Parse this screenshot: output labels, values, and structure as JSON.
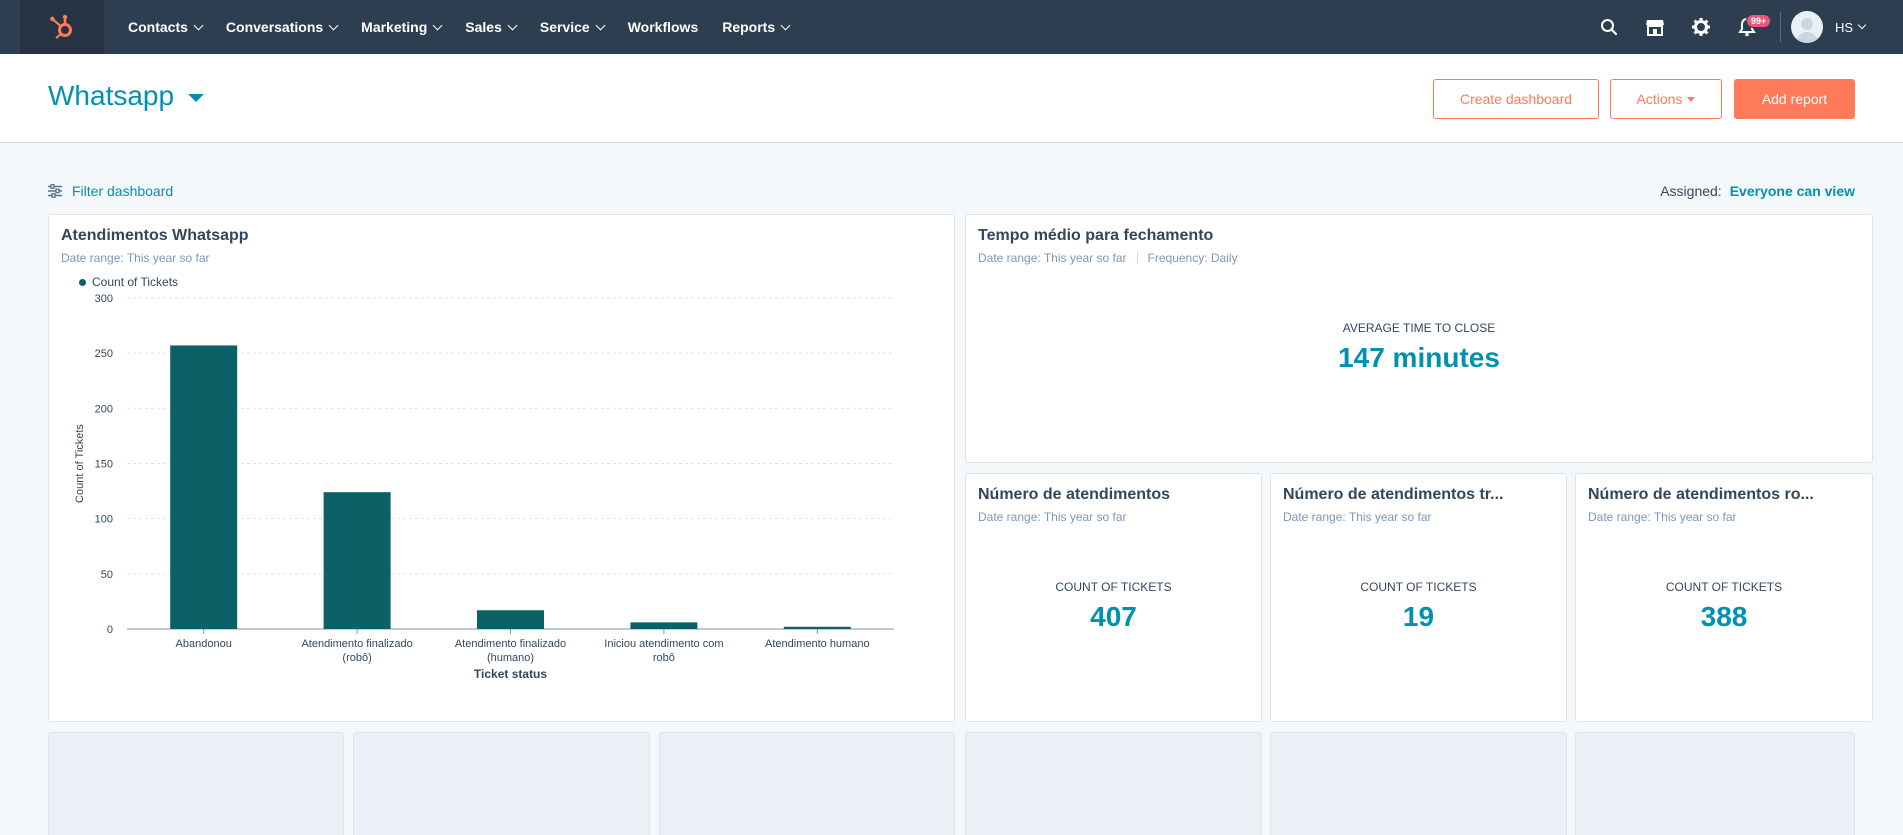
{
  "nav": {
    "items": [
      {
        "label": "Contacts",
        "dropdown": true
      },
      {
        "label": "Conversations",
        "dropdown": true
      },
      {
        "label": "Marketing",
        "dropdown": true
      },
      {
        "label": "Sales",
        "dropdown": true
      },
      {
        "label": "Service",
        "dropdown": true
      },
      {
        "label": "Workflows",
        "dropdown": false
      },
      {
        "label": "Reports",
        "dropdown": true
      }
    ],
    "notifications_badge": "99+",
    "account_initials": "HS"
  },
  "header": {
    "dashboard_title": "Whatsapp",
    "create_dashboard_label": "Create dashboard",
    "actions_label": "Actions",
    "add_report_label": "Add report"
  },
  "filter": {
    "label": "Filter dashboard",
    "assigned_label": "Assigned:",
    "assigned_value": "Everyone can view"
  },
  "cards": {
    "tickets_chart": {
      "title": "Atendimentos Whatsapp",
      "date_range": "Date range: This year so far"
    },
    "avg_close": {
      "title": "Tempo médio para fechamento",
      "date_range": "Date range: This year so far",
      "frequency": "Frequency: Daily",
      "kpi_label": "AVERAGE TIME TO CLOSE",
      "kpi_value": "147 minutes"
    },
    "num_atendimentos": {
      "title": "Número de atendimentos",
      "date_range": "Date range: This year so far",
      "kpi_label": "COUNT OF TICKETS",
      "kpi_value": "407"
    },
    "num_atendimentos_tr": {
      "title": "Número de atendimentos tr...",
      "date_range": "Date range: This year so far",
      "kpi_label": "COUNT OF TICKETS",
      "kpi_value": "19"
    },
    "num_atendimentos_ro": {
      "title": "Número de atendimentos ro...",
      "date_range": "Date range: This year so far",
      "kpi_label": "COUNT OF TICKETS",
      "kpi_value": "388"
    }
  },
  "chart_data": {
    "type": "bar",
    "categories": [
      [
        "Abandonou"
      ],
      [
        "Atendimento finalizado",
        "(robô)"
      ],
      [
        "Atendimento finalizado",
        "(humano)"
      ],
      [
        "Iniciou atendimento com",
        "robô"
      ],
      [
        "Atendimento humano"
      ]
    ],
    "series": [
      {
        "name": "Count of Tickets",
        "values": [
          257,
          124,
          17,
          6,
          2
        ]
      }
    ],
    "ylim": [
      0,
      300
    ],
    "yticks": [
      "0",
      "50",
      "100",
      "150",
      "200",
      "250",
      "300"
    ],
    "xlabel": "Ticket status",
    "ylabel": "Count of Tickets",
    "grid": true,
    "bar_color": "#0c6167"
  },
  "colors": {
    "nav_bg": "#2d3e50",
    "accent": "#0091ae",
    "cta": "#ff7a59",
    "bar": "#0c6167"
  }
}
